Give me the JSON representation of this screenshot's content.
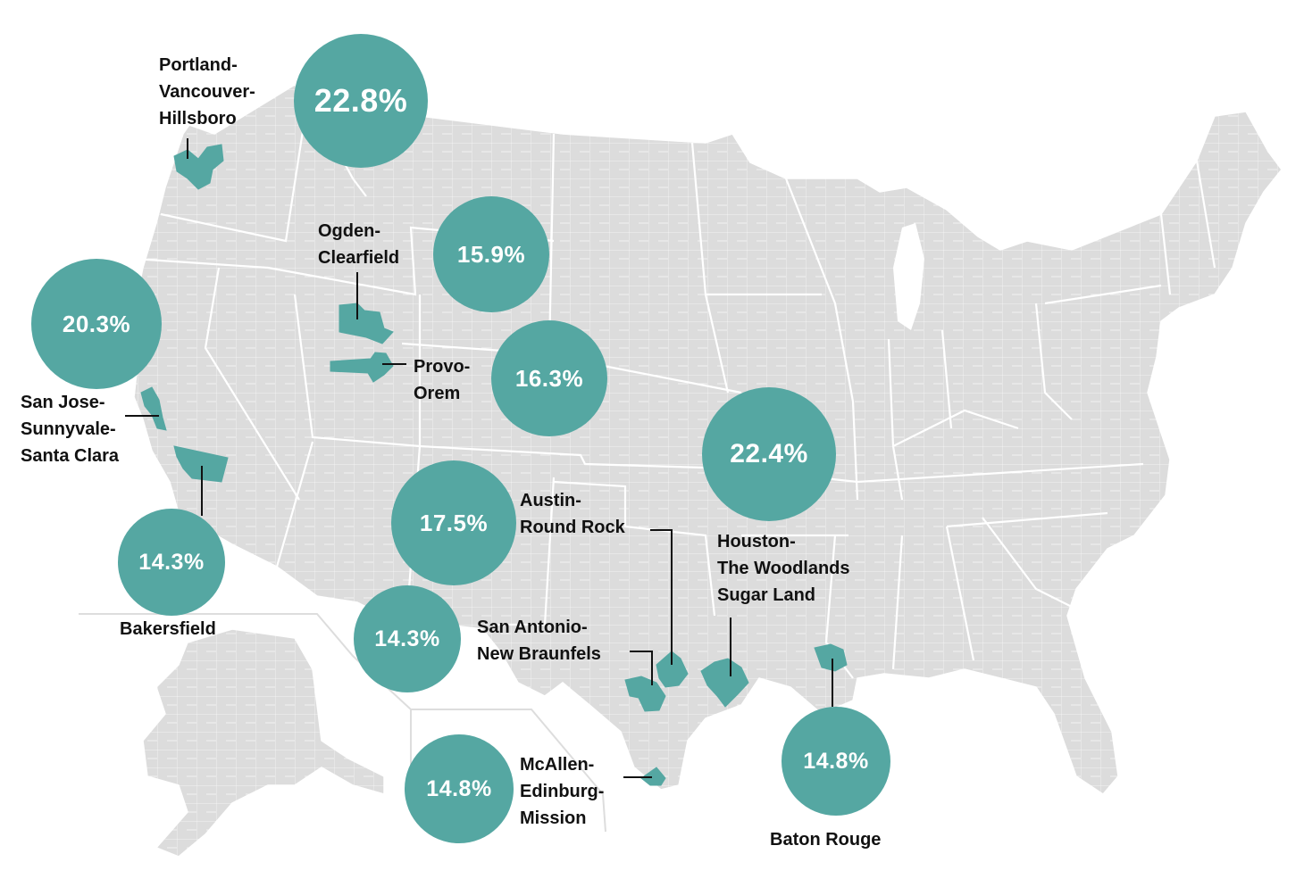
{
  "colors": {
    "accent": "#55a7a2",
    "land": "#dcdcdc",
    "border": "#ffffff",
    "text": "#111111"
  },
  "metros": [
    {
      "name": "Portland-Vancouver-Hillsboro",
      "label_lines": [
        "Portland-",
        "Vancouver-",
        "Hillsboro"
      ],
      "value": "22.8%"
    },
    {
      "name": "Ogden-Clearfield",
      "label_lines": [
        "Ogden-",
        "Clearfield"
      ],
      "value": "15.9%"
    },
    {
      "name": "San Jose-Sunnyvale-Santa Clara",
      "label_lines": [
        "San Jose-",
        "Sunnyvale-",
        "Santa Clara"
      ],
      "value": "20.3%"
    },
    {
      "name": "Provo-Orem",
      "label_lines": [
        "Provo-",
        "Orem"
      ],
      "value": "16.3%"
    },
    {
      "name": "Bakersfield",
      "label_lines": [
        "Bakersfield"
      ],
      "value": "14.3%"
    },
    {
      "name": "Austin-Round Rock",
      "label_lines": [
        "Austin-",
        "Round Rock"
      ],
      "value": "17.5%"
    },
    {
      "name": "San Antonio-New Braunfels",
      "label_lines": [
        "San Antonio-",
        "New Braunfels"
      ],
      "value": "14.3%"
    },
    {
      "name": "Houston-The Woodlands Sugar Land",
      "label_lines": [
        "Houston-",
        "The Woodlands",
        "Sugar Land"
      ],
      "value": "22.4%"
    },
    {
      "name": "McAllen-Edinburg-Mission",
      "label_lines": [
        "McAllen-",
        "Edinburg-",
        "Mission"
      ],
      "value": "14.8%"
    },
    {
      "name": "Baton Rouge",
      "label_lines": [
        "Baton Rouge"
      ],
      "value": "14.8%"
    }
  ]
}
